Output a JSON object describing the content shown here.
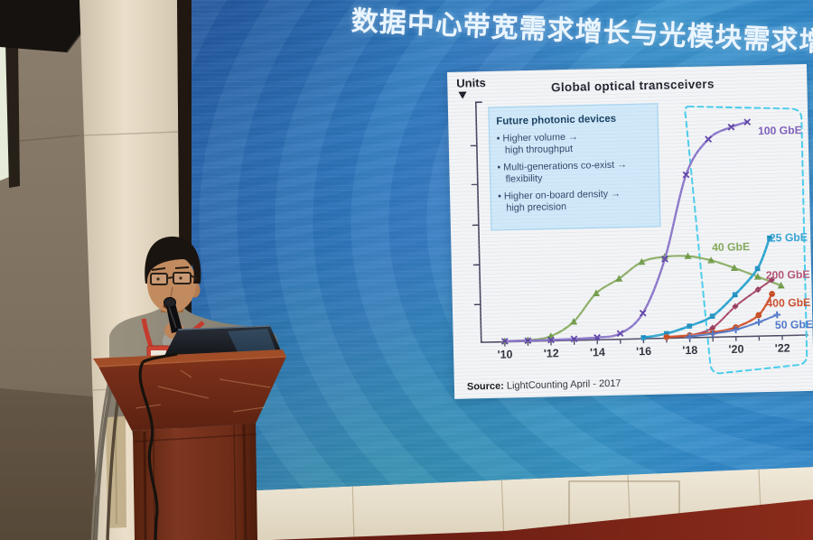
{
  "screen": {
    "title": "数据中心带宽需求增长与光模块需求增",
    "colors": {
      "base_blue": "#2f7dc0",
      "teal_swoosh": "#3aa39b",
      "deep_blue": "#1e4f96"
    }
  },
  "slide": {
    "units_label": "Units",
    "title": "Global optical transceivers",
    "info_box": {
      "title": "Future photonic devices",
      "lines": [
        {
          "text": "• Higher volume →",
          "indent": 0
        },
        {
          "text": "high throughput",
          "indent": 1
        },
        {
          "text": "• Multi-generations co-exist →",
          "indent": 0
        },
        {
          "text": "flexibility",
          "indent": 1
        },
        {
          "text": "• Higher on-board density →",
          "indent": 0
        },
        {
          "text": "high precision",
          "indent": 1
        }
      ]
    },
    "source_label": "Source:",
    "source_text": " LightCounting April - 2017"
  },
  "chart_data": {
    "type": "line",
    "title": "Global optical transceivers",
    "xlabel": "",
    "ylabel": "Units",
    "x_range": [
      2010,
      2022
    ],
    "x_tick_years": [
      2010,
      2012,
      2014,
      2016,
      2018,
      2020,
      2022
    ],
    "x_tick_labels": [
      "'10",
      "'12",
      "'14",
      "'16",
      "'18",
      "'20",
      "'22"
    ],
    "y_axis_numbers_shown": false,
    "grid": false,
    "legend_position": "inline-labels-right",
    "annotation": {
      "dashed_region_years": [
        2018,
        2022
      ],
      "dashed_color": "#43cdec"
    },
    "series": [
      {
        "name": "40 GbE",
        "color": "#8bae62",
        "marker": "triangle",
        "marker_color": "#6f9a45",
        "label_color": "#7fa651",
        "label_anchor": "start",
        "label_at": [
          2019.05,
          38.5
        ],
        "width": 2.2,
        "x": [
          2010,
          2011,
          2012,
          2013,
          2014,
          2015,
          2016,
          2017,
          2018,
          2019,
          2020,
          2021,
          2022
        ],
        "values": [
          0.3,
          0.5,
          2,
          8,
          20,
          26,
          33,
          35,
          35,
          33,
          29.5,
          25.5,
          21.5
        ]
      },
      {
        "name": "100 GbE",
        "color": "#8a74c9",
        "marker": "x",
        "marker_color": "#5b3fa5",
        "label_color": "#7b5cb8",
        "label_anchor": "start",
        "label_at": [
          2021.15,
          88
        ],
        "width": 2.4,
        "x": [
          2010,
          2011,
          2012,
          2013,
          2014,
          2015,
          2016,
          2017,
          2018,
          2019,
          2020,
          2020.7
        ],
        "values": [
          0.3,
          0.3,
          0.4,
          0.6,
          1,
          2.5,
          11,
          34,
          70,
          85,
          90,
          92
        ]
      },
      {
        "name": "25 GbE",
        "color": "#28a3cf",
        "marker": "square",
        "marker_color": "#1b8fc0",
        "label_color": "#2d9fd2",
        "label_anchor": "start",
        "label_at": [
          2021.55,
          42
        ],
        "width": 2.6,
        "x": [
          2016,
          2017,
          2018,
          2019,
          2020,
          2021,
          2021.55
        ],
        "values": [
          0.5,
          2,
          5,
          9,
          18,
          29,
          42
        ]
      },
      {
        "name": "200 GbE",
        "color": "#a84464",
        "marker": "diamond",
        "marker_color": "#993a5c",
        "label_color": "#b34d72",
        "label_anchor": "start",
        "label_at": [
          2021.35,
          26
        ],
        "width": 2.0,
        "x": [
          2017,
          2018,
          2019,
          2020,
          2021,
          2021.6
        ],
        "values": [
          0.5,
          1,
          4,
          13,
          20,
          24
        ]
      },
      {
        "name": "400 GbE",
        "color": "#d4552e",
        "marker": "circle",
        "marker_color": "#c74a20",
        "label_color": "#cc4824",
        "label_anchor": "start",
        "label_at": [
          2021.35,
          14
        ],
        "width": 2.4,
        "x": [
          2017,
          2018,
          2019,
          2020,
          2021,
          2021.6
        ],
        "values": [
          0.5,
          1,
          2,
          4,
          9,
          18
        ]
      },
      {
        "name": "50 GbE",
        "color": "#5479c8",
        "marker": "plus",
        "marker_color": "#4a74c8",
        "label_color": "#4a74c8",
        "label_anchor": "start",
        "label_at": [
          2021.7,
          4.6
        ],
        "width": 2.0,
        "x": [
          2018,
          2019,
          2020,
          2021,
          2021.8
        ],
        "values": [
          0.5,
          1.5,
          3,
          6,
          9
        ]
      }
    ],
    "source": "Source: LightCounting April - 2017"
  }
}
